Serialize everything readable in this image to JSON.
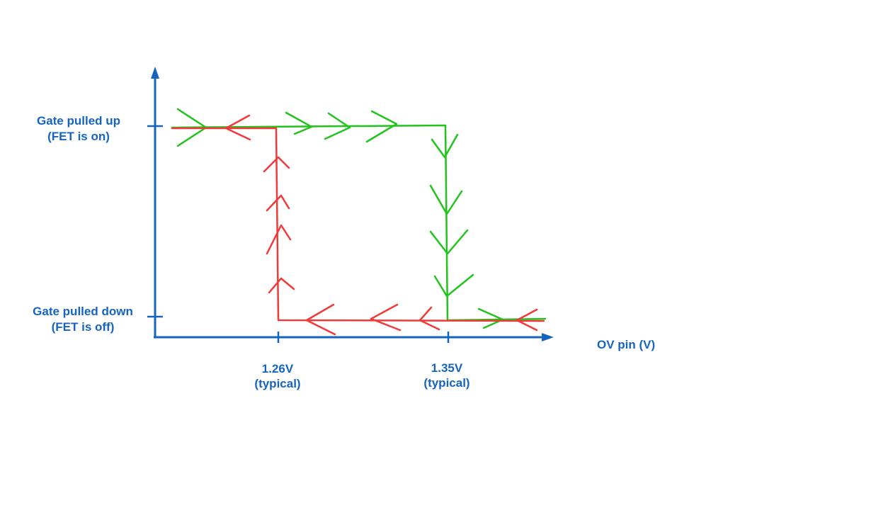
{
  "colors": {
    "axis": "#1565c0",
    "label": "#1565c0",
    "rising_path": "#22c31c",
    "falling_path": "#f03a3a",
    "background": "#ffffff"
  },
  "y_axis": {
    "high_label_line1": "Gate pulled up",
    "high_label_line2": "(FET is on)",
    "low_label_line1": "Gate pulled down",
    "low_label_line2": "(FET is off)"
  },
  "x_axis": {
    "label": "OV pin (V)",
    "tick_1": {
      "value": "1.26V",
      "note": "(typical)"
    },
    "tick_2": {
      "value": "1.35V",
      "note": "(typical)"
    }
  },
  "chart_data": {
    "type": "line",
    "xlabel": "OV pin (V)",
    "ylabel": "",
    "x_ticks": [
      "1.26V (typical)",
      "1.35V (typical)"
    ],
    "y_levels": [
      "Gate pulled down (FET is off)",
      "Gate pulled up (FET is on)"
    ],
    "series": [
      {
        "color": "#22c31c",
        "direction": "rising",
        "points": [
          {
            "x": "start",
            "y": "Gate pulled up (FET is on)"
          },
          {
            "x": 1.35,
            "y": "Gate pulled up (FET is on)"
          },
          {
            "x": 1.35,
            "y": "Gate pulled down (FET is off)"
          },
          {
            "x": "end",
            "y": "Gate pulled down (FET is off)"
          }
        ]
      },
      {
        "color": "#f03a3a",
        "direction": "falling",
        "points": [
          {
            "x": "end",
            "y": "Gate pulled down (FET is off)"
          },
          {
            "x": 1.26,
            "y": "Gate pulled down (FET is off)"
          },
          {
            "x": 1.26,
            "y": "Gate pulled up (FET is on)"
          },
          {
            "x": "start",
            "y": "Gate pulled up (FET is on)"
          }
        ]
      }
    ]
  }
}
